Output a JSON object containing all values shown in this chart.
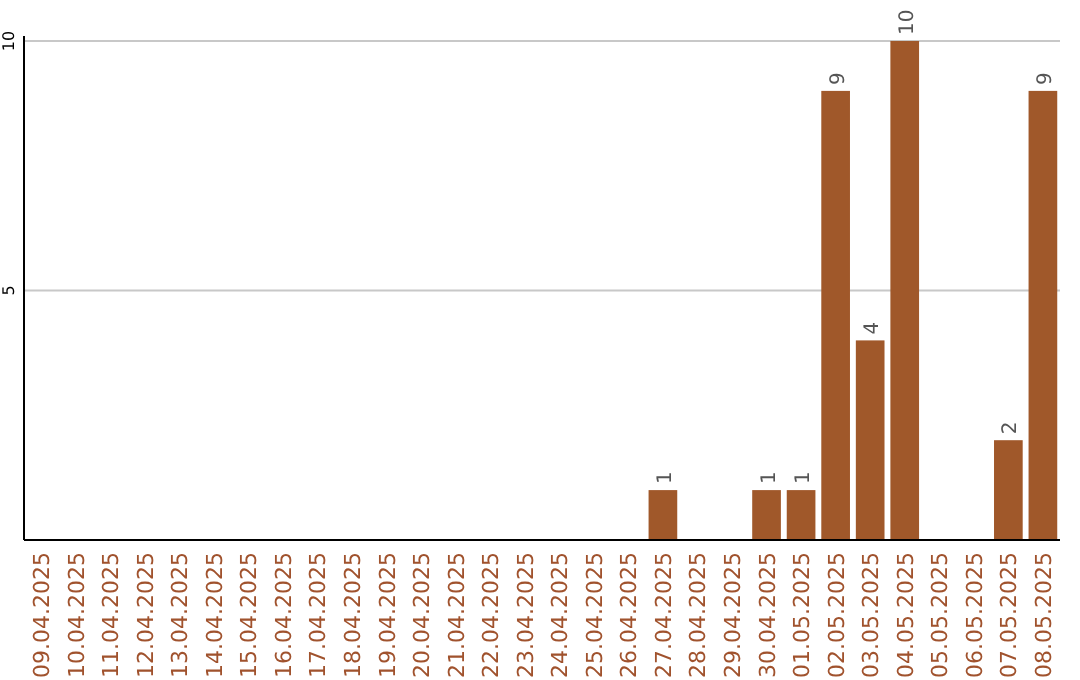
{
  "chart_data": {
    "type": "bar",
    "categories": [
      "09.04.2025",
      "10.04.2025",
      "11.04.2025",
      "12.04.2025",
      "13.04.2025",
      "14.04.2025",
      "15.04.2025",
      "16.04.2025",
      "17.04.2025",
      "18.04.2025",
      "19.04.2025",
      "20.04.2025",
      "21.04.2025",
      "22.04.2025",
      "23.04.2025",
      "24.04.2025",
      "25.04.2025",
      "26.04.2025",
      "27.04.2025",
      "28.04.2025",
      "29.04.2025",
      "30.04.2025",
      "01.05.2025",
      "02.05.2025",
      "03.05.2025",
      "04.05.2025",
      "05.05.2025",
      "06.05.2025",
      "07.05.2025",
      "08.05.2025"
    ],
    "values": [
      0,
      0,
      0,
      0,
      0,
      0,
      0,
      0,
      0,
      0,
      0,
      0,
      0,
      0,
      0,
      0,
      0,
      0,
      1,
      0,
      0,
      1,
      1,
      9,
      4,
      10,
      0,
      0,
      2,
      9
    ],
    "value_labels": [
      null,
      null,
      null,
      null,
      null,
      null,
      null,
      null,
      null,
      null,
      null,
      null,
      null,
      null,
      null,
      null,
      null,
      null,
      "1",
      null,
      null,
      "1",
      "1",
      "9",
      "4",
      "10",
      null,
      null,
      "2",
      "9"
    ],
    "color": "#a0582a",
    "ylim": [
      0,
      10.1
    ],
    "yticks": [
      5,
      10
    ],
    "grid": "y"
  }
}
